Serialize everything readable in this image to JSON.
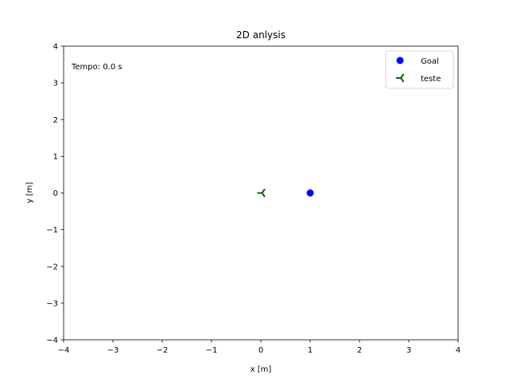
{
  "chart_data": {
    "type": "scatter",
    "title": "2D anlysis",
    "xlabel": "x [m]",
    "ylabel": "y [m]",
    "xlim": [
      -4,
      4
    ],
    "ylim": [
      -4,
      4
    ],
    "xticks": [
      -4,
      -3,
      -2,
      -1,
      0,
      1,
      2,
      3,
      4
    ],
    "yticks": [
      -4,
      -3,
      -2,
      -1,
      0,
      1,
      2,
      3,
      4
    ],
    "grid": false,
    "legend_position": "top-right",
    "annotation": "Tempo: 0.0 s",
    "series": [
      {
        "name": "Goal",
        "marker": "circle",
        "color": "#0000ff",
        "points": [
          [
            1,
            0
          ]
        ]
      },
      {
        "name": "teste",
        "marker": "tri-left",
        "color": "#006400",
        "points": [
          [
            0,
            0
          ]
        ]
      }
    ]
  }
}
